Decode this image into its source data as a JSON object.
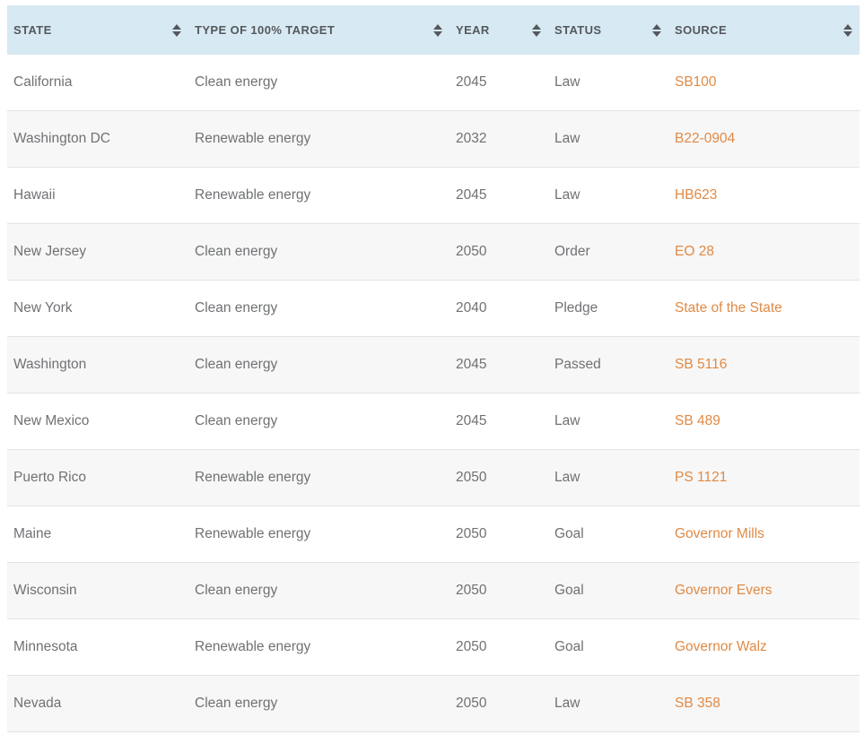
{
  "colors": {
    "header_bg": "#d7e9f2",
    "header_text": "#54585c",
    "row_alt_bg": "#f7f7f7",
    "row_border": "#e3e3e3",
    "body_text": "#6f7174",
    "link": "#e08a45"
  },
  "table": {
    "columns": [
      {
        "label": "STATE"
      },
      {
        "label": "TYPE OF 100% TARGET"
      },
      {
        "label": "YEAR"
      },
      {
        "label": "STATUS"
      },
      {
        "label": "SOURCE"
      }
    ],
    "rows": [
      {
        "state": "California",
        "type": "Clean energy",
        "year": "2045",
        "status": "Law",
        "source": "SB100"
      },
      {
        "state": "Washington DC",
        "type": "Renewable energy",
        "year": "2032",
        "status": "Law",
        "source": "B22-0904"
      },
      {
        "state": "Hawaii",
        "type": "Renewable energy",
        "year": "2045",
        "status": "Law",
        "source": "HB623"
      },
      {
        "state": "New Jersey",
        "type": "Clean energy",
        "year": "2050",
        "status": "Order",
        "source": "EO 28"
      },
      {
        "state": "New York",
        "type": "Clean energy",
        "year": "2040",
        "status": "Pledge",
        "source": "State of the State"
      },
      {
        "state": "Washington",
        "type": "Clean energy",
        "year": "2045",
        "status": "Passed",
        "source": "SB 5116"
      },
      {
        "state": "New Mexico",
        "type": "Clean energy",
        "year": "2045",
        "status": "Law",
        "source": "SB 489"
      },
      {
        "state": "Puerto Rico",
        "type": "Renewable energy",
        "year": "2050",
        "status": "Law",
        "source": "PS 1121"
      },
      {
        "state": "Maine",
        "type": "Renewable energy",
        "year": "2050",
        "status": "Goal",
        "source": "Governor Mills"
      },
      {
        "state": "Wisconsin",
        "type": "Clean energy",
        "year": "2050",
        "status": "Goal",
        "source": "Governor Evers"
      },
      {
        "state": "Minnesota",
        "type": "Renewable energy",
        "year": "2050",
        "status": "Goal",
        "source": "Governor Walz"
      },
      {
        "state": "Nevada",
        "type": "Clean energy",
        "year": "2050",
        "status": "Law",
        "source": "SB 358"
      }
    ]
  }
}
